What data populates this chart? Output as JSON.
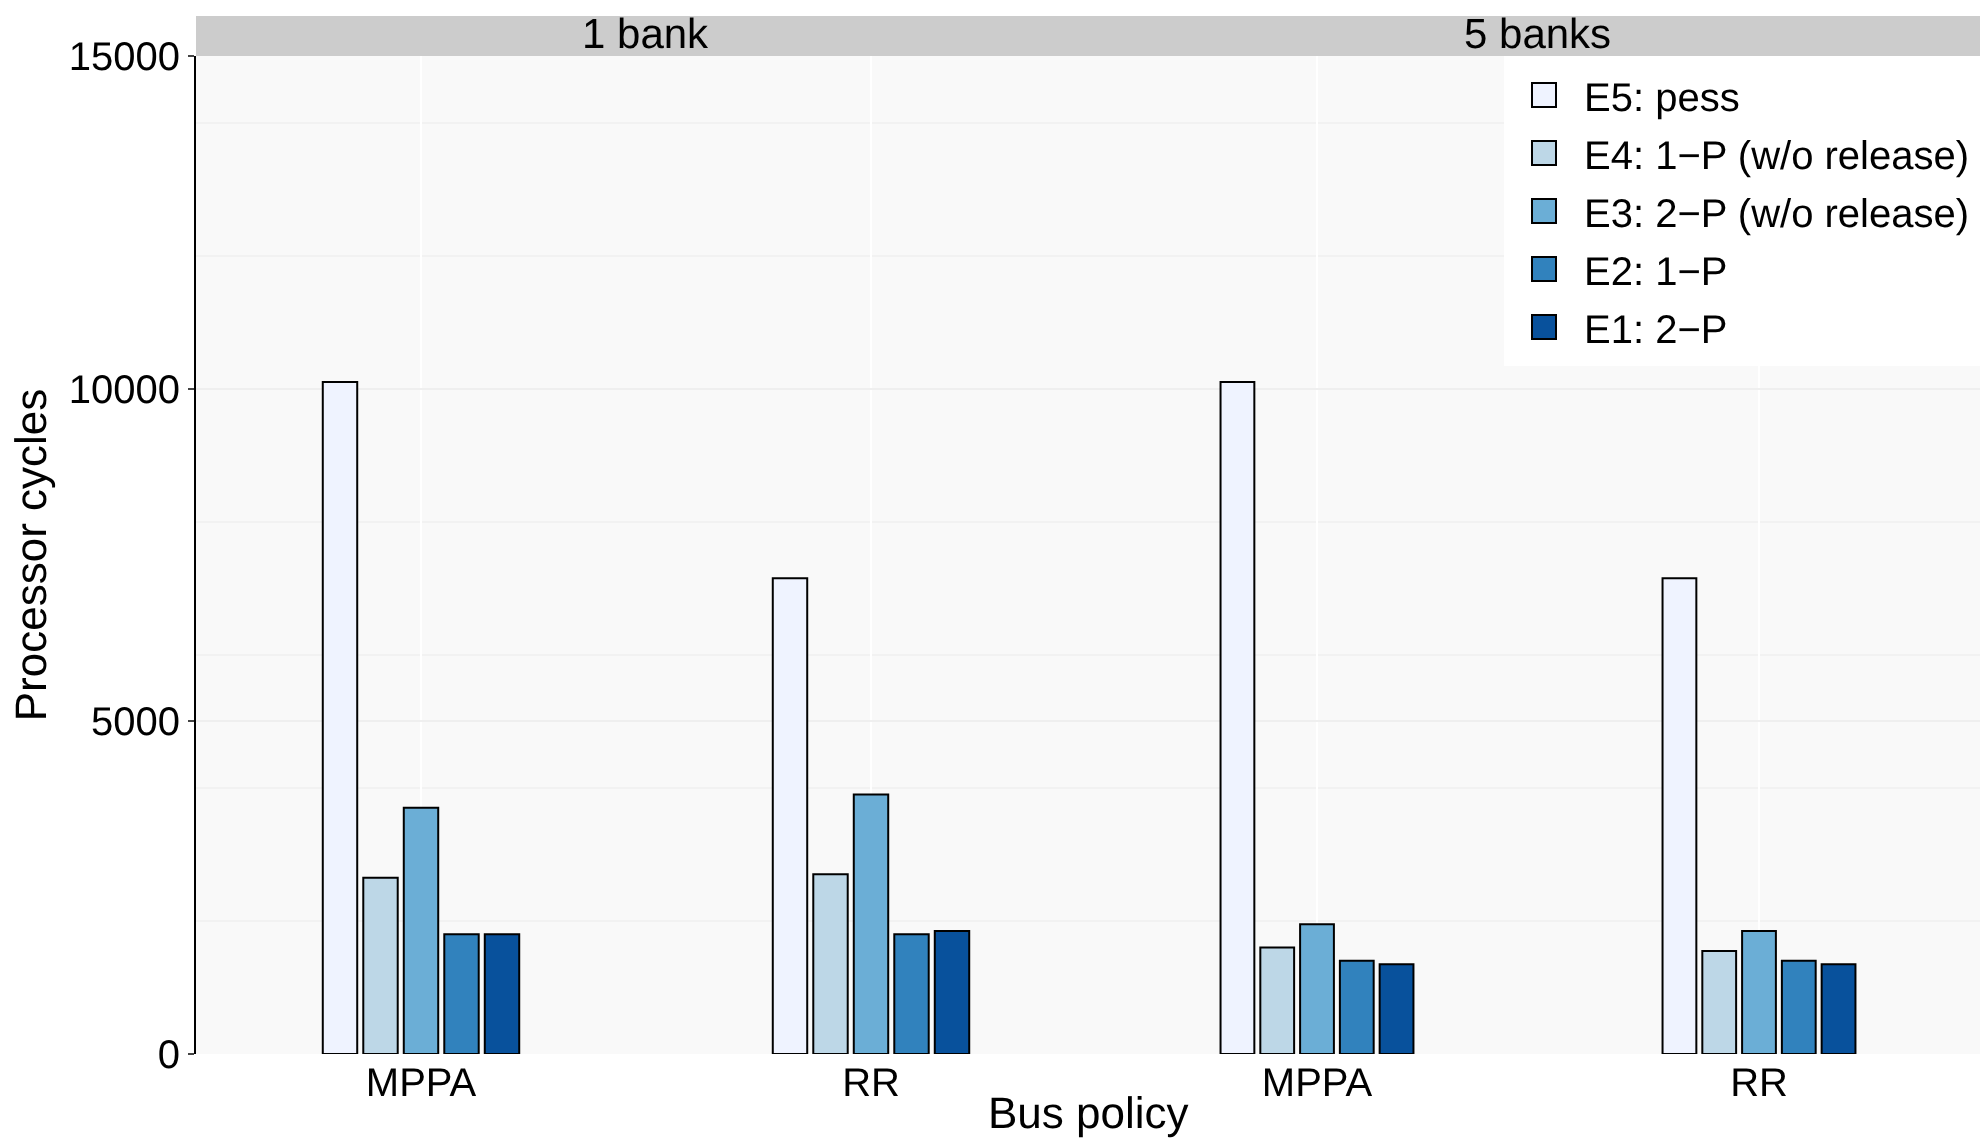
{
  "chart_data": [
    {
      "type": "bar",
      "title": "1 bank",
      "xlabel": "Bus policy",
      "ylabel": "Processor cycles",
      "categories": [
        "MPPA",
        "RR"
      ],
      "ylim": [
        0,
        15000
      ],
      "yticks": [
        0,
        5000,
        10000,
        15000
      ],
      "grid": true,
      "legend": false,
      "series": [
        {
          "color": "#eff3ff",
          "values": [
            10100,
            7150
          ]
        },
        {
          "color": "#bdd7e7",
          "values": [
            2650,
            2700
          ]
        },
        {
          "color": "#6baed6",
          "values": [
            3700,
            3900
          ]
        },
        {
          "color": "#3182bd",
          "values": [
            1800,
            1800
          ]
        },
        {
          "color": "#08519c",
          "values": [
            1800,
            1850
          ]
        }
      ]
    },
    {
      "type": "bar",
      "title": "5 banks",
      "categories": [
        "MPPA",
        "RR"
      ],
      "ylim": [
        0,
        15000
      ],
      "yticks": [
        0,
        5000,
        10000,
        15000
      ],
      "grid": true,
      "legend": "top right",
      "tick_labels": "x",
      "series": [
        {
          "name": "E5: pess",
          "color": "#eff3ff",
          "values": [
            10100,
            7150
          ]
        },
        {
          "name": "E4: 1−P (w/o release)",
          "color": "#bdd7e7",
          "values": [
            1600,
            1550
          ]
        },
        {
          "name": "E3: 2−P (w/o release)",
          "color": "#6baed6",
          "values": [
            1950,
            1850
          ]
        },
        {
          "name": "E2: 1−P",
          "color": "#3182bd",
          "values": [
            1400,
            1400
          ]
        },
        {
          "name": "E1: 2−P",
          "color": "#08519c",
          "values": [
            1350,
            1350
          ]
        }
      ]
    }
  ]
}
